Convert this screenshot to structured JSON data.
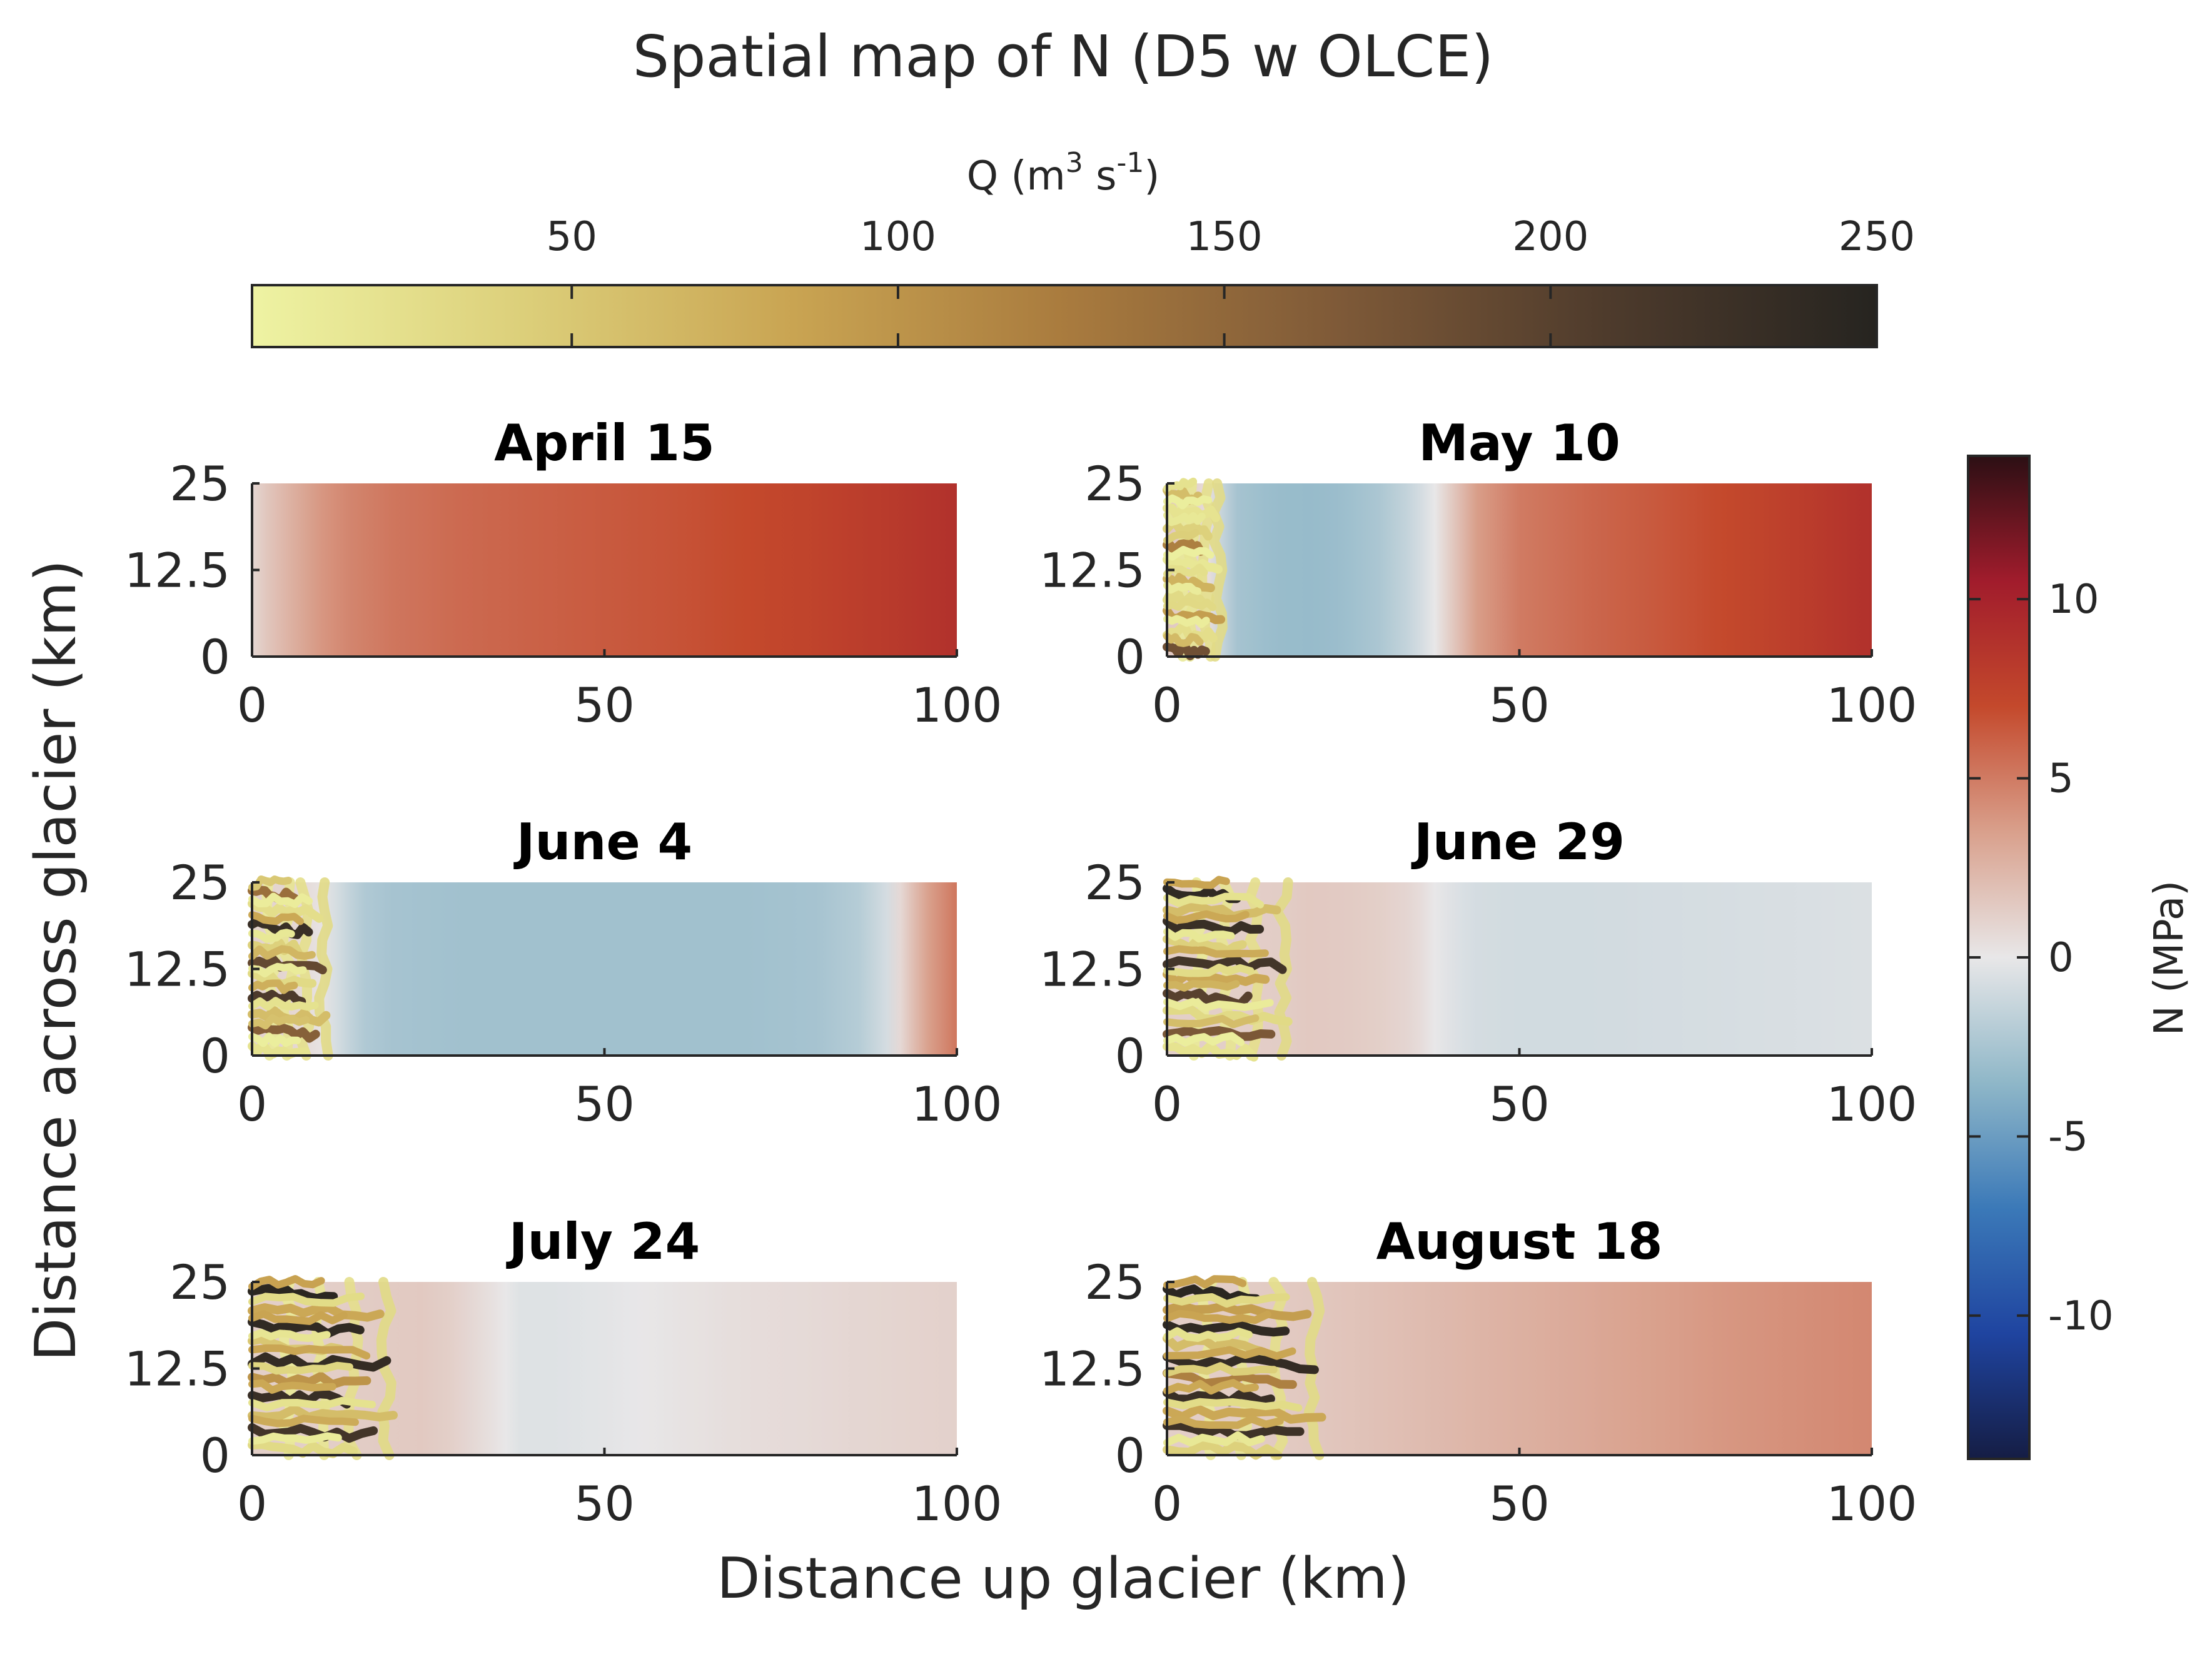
{
  "figure": {
    "title": "Spatial map of N (D5 w OLCE)",
    "xlabel": "Distance up glacier (km)",
    "ylabel": "Distance across glacier (km)"
  },
  "colorbar_q": {
    "label_main": "Q (m",
    "label_sup1": "3",
    "label_mid": " s",
    "label_sup2": "-1",
    "label_end": ")",
    "ticks": [
      50,
      100,
      150,
      200,
      250
    ],
    "range": [
      1,
      250
    ],
    "colors": [
      "#eef3a3",
      "#dccf7a",
      "#c9a452",
      "#a97b3e",
      "#7f5a38",
      "#4e3b2c",
      "#262420"
    ]
  },
  "colorbar_n": {
    "label": "N (MPa)",
    "ticks": [
      10,
      5,
      0,
      -5,
      -10
    ],
    "range": [
      -14,
      14
    ],
    "colors": [
      "#151d44",
      "#1f44a0",
      "#3b79b8",
      "#8fb7c8",
      "#e8e7e8",
      "#d9a08c",
      "#c4492c",
      "#a11c2c",
      "#2c0f14"
    ]
  },
  "chart_data": [
    {
      "type": "heatmap",
      "title": "April 15",
      "xlim": [
        0,
        100
      ],
      "ylim": [
        0,
        25
      ],
      "xticks": [
        "0",
        "50",
        "100"
      ],
      "yticks": [
        "0",
        "12.5",
        "25"
      ],
      "n_profile_x": [
        0,
        1,
        2,
        4,
        6,
        8,
        10,
        14,
        20,
        30,
        40,
        50,
        60,
        70,
        80,
        90,
        95,
        100
      ],
      "n_profile_values": [
        0.8,
        1.2,
        1.6,
        2.2,
        2.8,
        3.4,
        3.9,
        4.6,
        5.2,
        5.7,
        6.0,
        6.3,
        6.6,
        7.0,
        7.5,
        8.1,
        8.5,
        8.9
      ],
      "channel_extent_km": 0,
      "channel_q": []
    },
    {
      "type": "heatmap",
      "title": "May 10",
      "xlim": [
        0,
        100
      ],
      "ylim": [
        0,
        25
      ],
      "xticks": [
        "0",
        "50",
        "100"
      ],
      "yticks": [
        "0",
        "12.5",
        "25"
      ],
      "n_profile_x": [
        0,
        3,
        6,
        8,
        10,
        15,
        20,
        25,
        30,
        35,
        38,
        41,
        44,
        50,
        60,
        70,
        80,
        90,
        100
      ],
      "n_profile_values": [
        1.5,
        1.2,
        0.5,
        -1.5,
        -2.6,
        -3.1,
        -3.2,
        -3.0,
        -2.4,
        -1.2,
        0.0,
        1.8,
        3.6,
        5.0,
        5.8,
        6.4,
        7.1,
        7.9,
        8.9
      ],
      "channel_extent_km": 8,
      "channel_q": [
        60,
        20,
        40,
        120,
        15,
        70,
        30,
        90,
        25,
        180
      ]
    },
    {
      "type": "heatmap",
      "title": "June 4",
      "xlim": [
        0,
        100
      ],
      "ylim": [
        0,
        25
      ],
      "xticks": [
        "0",
        "50",
        "100"
      ],
      "yticks": [
        "0",
        "12.5",
        "25"
      ],
      "n_profile_x": [
        0,
        6,
        10,
        13,
        16,
        20,
        30,
        40,
        50,
        60,
        70,
        80,
        86,
        90,
        93,
        96,
        100
      ],
      "n_profile_values": [
        1.0,
        0.8,
        0.2,
        -1.2,
        -2.2,
        -2.6,
        -2.8,
        -2.8,
        -2.8,
        -2.8,
        -2.8,
        -2.6,
        -2.0,
        -0.8,
        1.5,
        3.5,
        5.2
      ],
      "channel_extent_km": 11,
      "channel_q": [
        140,
        25,
        230,
        40,
        190,
        30,
        210,
        60,
        160,
        20
      ]
    },
    {
      "type": "heatmap",
      "title": "June 29",
      "xlim": [
        0,
        100
      ],
      "ylim": [
        0,
        25
      ],
      "xticks": [
        "0",
        "50",
        "100"
      ],
      "yticks": [
        "0",
        "12.5",
        "25"
      ],
      "n_profile_x": [
        0,
        10,
        17,
        20,
        25,
        30,
        35,
        38,
        41,
        44,
        50,
        60,
        70,
        80,
        90,
        100
      ],
      "n_profile_values": [
        1.2,
        1.2,
        1.3,
        1.5,
        1.4,
        1.2,
        0.8,
        0.0,
        -0.5,
        -0.8,
        -0.9,
        -0.9,
        -0.8,
        -0.7,
        -0.6,
        -0.5
      ],
      "channel_extent_km": 18,
      "channel_q": [
        240,
        60,
        230,
        40,
        220,
        80,
        200,
        30,
        170,
        20
      ]
    },
    {
      "type": "heatmap",
      "title": "July 24",
      "xlim": [
        0,
        100
      ],
      "ylim": [
        0,
        25
      ],
      "xticks": [
        "0",
        "50",
        "100"
      ],
      "yticks": [
        "0",
        "12.5",
        "25"
      ],
      "n_profile_x": [
        0,
        10,
        20,
        24,
        28,
        33,
        36,
        38,
        42,
        50,
        60,
        70,
        80,
        90,
        100
      ],
      "n_profile_values": [
        1.2,
        1.2,
        1.4,
        1.5,
        1.2,
        0.5,
        0.0,
        -0.4,
        -0.4,
        -0.2,
        0.2,
        0.5,
        0.7,
        0.9,
        1.1
      ],
      "channel_extent_km": 21,
      "channel_q": [
        245,
        80,
        240,
        50,
        235,
        100,
        230,
        60,
        220,
        30
      ]
    },
    {
      "type": "heatmap",
      "title": "August 18",
      "xlim": [
        0,
        100
      ],
      "ylim": [
        0,
        25
      ],
      "xticks": [
        "0",
        "50",
        "100"
      ],
      "yticks": [
        "0",
        "12.5",
        "25"
      ],
      "n_profile_x": [
        0,
        10,
        22,
        30,
        40,
        50,
        60,
        70,
        80,
        90,
        100
      ],
      "n_profile_values": [
        1.2,
        1.3,
        1.6,
        1.9,
        2.3,
        2.7,
        3.1,
        3.5,
        3.9,
        4.2,
        4.5
      ],
      "channel_extent_km": 23,
      "channel_q": [
        245,
        90,
        240,
        60,
        235,
        120,
        230,
        80,
        225,
        40
      ]
    }
  ]
}
